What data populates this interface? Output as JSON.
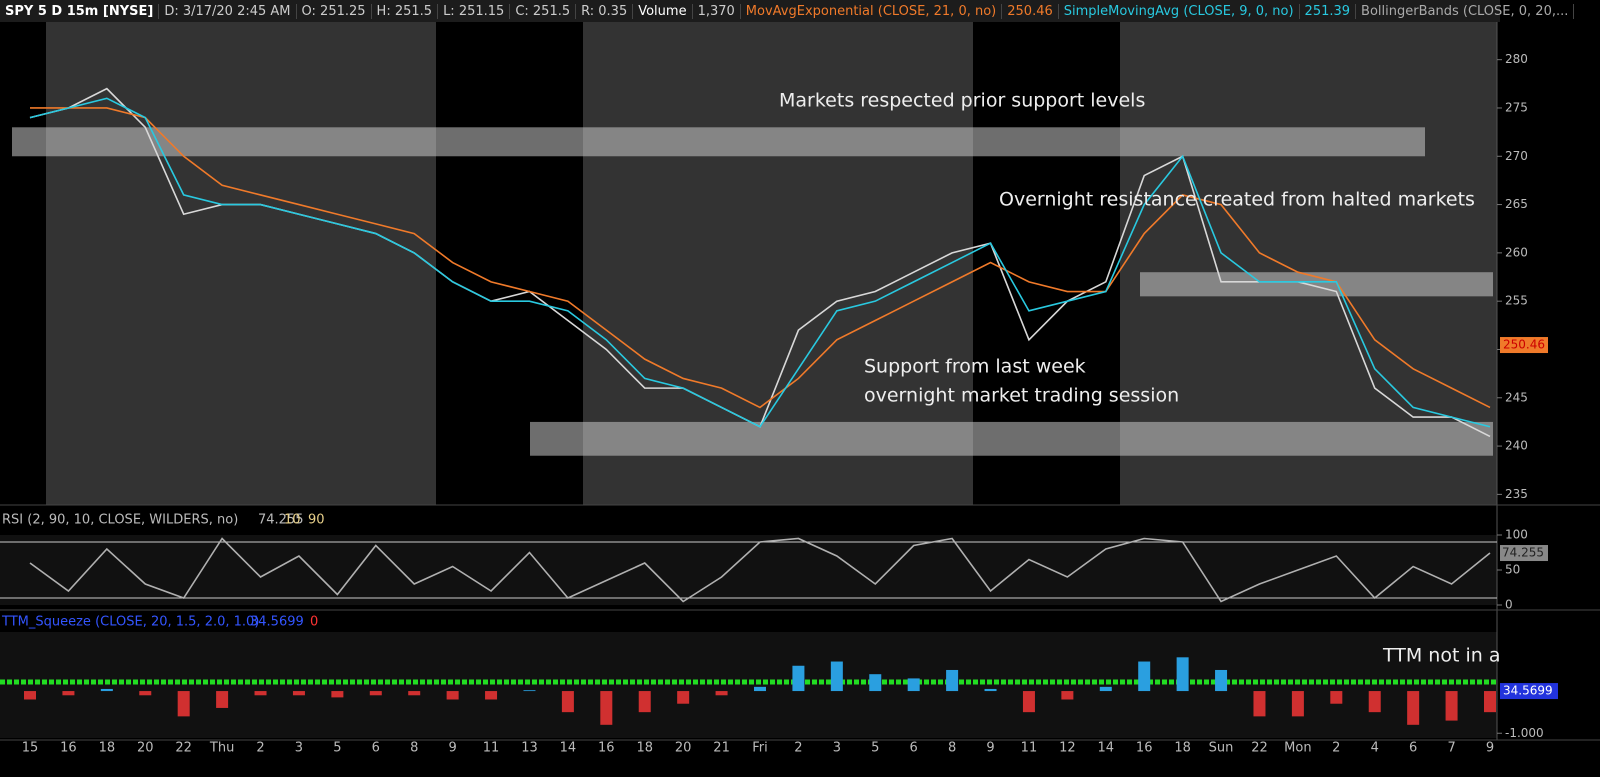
{
  "header": {
    "symbol": "SPY 5 D 15m [NYSE]",
    "fields": [
      "D: 3/17/20 2:45 AM",
      "O: 251.25",
      "H: 251.5",
      "L: 251.15",
      "C: 251.5",
      "R: 0.35"
    ],
    "volume_label": "Volume",
    "volume": "1,370",
    "ema_value": "250.46",
    "sma_value": "251.39",
    "bb_label": "BollingerBands (CLOSE, 0, 20,..."
  },
  "chart_data": [
    {
      "type": "line",
      "categories": [
        "15",
        "16",
        "18",
        "20",
        "22",
        "Thu",
        "2",
        "3",
        "5",
        "6",
        "8",
        "9",
        "11",
        "13",
        "14",
        "16",
        "18",
        "20",
        "21",
        "Fri",
        "2",
        "3",
        "5",
        "6",
        "8",
        "9",
        "11",
        "12",
        "14",
        "16",
        "18",
        "Sun",
        "22",
        "Mon",
        "2",
        "4",
        "6",
        "7",
        "9"
      ],
      "series": [
        {
          "color": "#d8d8d8",
          "values": [
            274,
            275,
            277,
            273,
            264,
            265,
            265,
            264,
            263,
            262,
            260,
            257,
            255,
            256,
            253,
            250,
            246,
            246,
            244,
            242,
            252,
            255,
            256,
            258,
            260,
            261,
            251,
            255,
            257,
            268,
            270,
            257,
            257,
            257,
            256,
            246,
            243,
            243,
            241
          ]
        },
        {
          "name": "MovAvgExponential (CLOSE, 21, 0, no)",
          "color": "#f07a2a",
          "values": [
            275,
            275,
            275,
            274,
            270,
            267,
            266,
            265,
            264,
            263,
            262,
            259,
            257,
            256,
            255,
            252,
            249,
            247,
            246,
            244,
            247,
            251,
            253,
            255,
            257,
            259,
            257,
            256,
            256,
            262,
            266,
            265,
            260,
            258,
            257,
            251,
            248,
            246,
            244
          ]
        },
        {
          "name": "SimpleMovingAvg (CLOSE, 9, 0, no)",
          "color": "#29c9e0",
          "values": [
            274,
            275,
            276,
            274,
            266,
            265,
            265,
            264,
            263,
            262,
            260,
            257,
            255,
            255,
            254,
            251,
            247,
            246,
            244,
            242,
            248,
            254,
            255,
            257,
            259,
            261,
            254,
            255,
            256,
            265,
            270,
            260,
            257,
            257,
            257,
            248,
            244,
            243,
            242
          ]
        }
      ],
      "ylim": [
        233.9,
        283.9
      ],
      "yticks": [
        235,
        240,
        245,
        250,
        255,
        260,
        265,
        270,
        275,
        280
      ],
      "zones": [
        [
          270,
          273
        ],
        [
          255.5,
          258
        ],
        [
          239,
          242.5
        ]
      ],
      "annotations": [
        "Markets respected prior support levels",
        "Overnight resistance created from halted markets",
        "Support from last week",
        "overnight market trading session"
      ],
      "last_label": {
        "value": 250.46,
        "label": "250.46"
      }
    },
    {
      "type": "line",
      "title": "RSI (2, 90, 10, CLOSE, WILDERS, no)",
      "value_label": "74.255",
      "levels": [
        10,
        90
      ],
      "color": "#b0b0b0",
      "values": [
        60,
        20,
        80,
        30,
        10,
        95,
        40,
        70,
        15,
        85,
        30,
        55,
        20,
        75,
        10,
        35,
        60,
        5,
        40,
        90,
        95,
        70,
        30,
        85,
        95,
        20,
        65,
        40,
        80,
        95,
        90,
        5,
        30,
        50,
        70,
        10,
        55,
        30,
        74.255
      ],
      "ylim": [
        0,
        100
      ],
      "yticks": [
        0,
        50,
        100
      ]
    },
    {
      "type": "bar",
      "title": "TTM_Squeeze (CLOSE, 20, 1.5, 2.0, 1.0)",
      "value_label": "34.5699",
      "extra_label": "0",
      "annotation": "TTM not in a",
      "values": [
        -0.2,
        -0.1,
        0.05,
        -0.1,
        -0.6,
        -0.4,
        -0.1,
        -0.1,
        -0.15,
        -0.1,
        -0.1,
        -0.2,
        -0.2,
        0.02,
        -0.5,
        -0.8,
        -0.5,
        -0.3,
        -0.1,
        0.1,
        0.6,
        0.7,
        0.4,
        0.3,
        0.5,
        0.05,
        -0.5,
        -0.2,
        0.1,
        0.7,
        0.8,
        0.5,
        -0.6,
        -0.6,
        -0.3,
        -0.5,
        -0.8,
        -0.7,
        -0.5
      ],
      "ylim": [
        -1.16,
        1.4
      ],
      "yticks": [
        {
          "value": -1,
          "label": "-1.000"
        }
      ]
    }
  ]
}
